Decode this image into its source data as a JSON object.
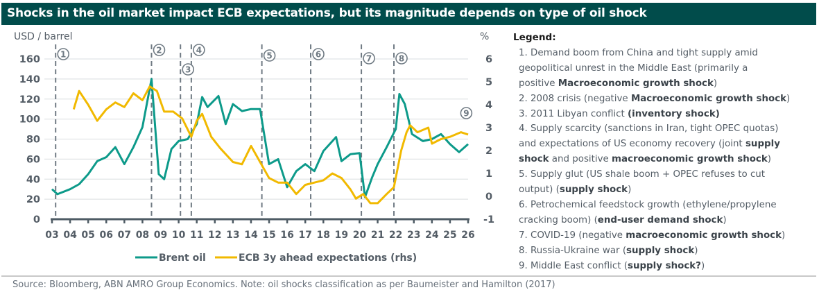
{
  "title": "Shocks in the oil market impact ECB expectations, but its magnitude depends on type of oil shock",
  "colors": {
    "title_bg": "#014c4b",
    "brent": "#0d9a8a",
    "ecb": "#f1b900",
    "marker": "#6f7a83",
    "axis": "#545d66",
    "grid": "#e1e4e6"
  },
  "legend_panel": {
    "heading": "Legend:",
    "items": [
      {
        "parts": [
          [
            "1. Demand boom from China and tight supply amid",
            false
          ]
        ]
      },
      {
        "parts": [
          [
            "geopolitical unrest in the Middle East (primarily a",
            false
          ]
        ]
      },
      {
        "parts": [
          [
            "positive ",
            false
          ],
          [
            "Macroeconomic growth shock",
            true
          ],
          [
            ")",
            false
          ]
        ]
      },
      {
        "parts": [
          [
            "2. 2008 crisis (negative ",
            false
          ],
          [
            "Macroeconomic growth shock",
            true
          ],
          [
            ")",
            false
          ]
        ]
      },
      {
        "parts": [
          [
            "3. 2011 Libyan conflict ",
            false
          ],
          [
            "(inventory shock)",
            true
          ]
        ]
      },
      {
        "parts": [
          [
            "4. Supply scarcity (sanctions in Iran, tight OPEC quotas)",
            false
          ]
        ]
      },
      {
        "parts": [
          [
            "and expectations of US economy recovery (joint ",
            false
          ],
          [
            "supply",
            true
          ]
        ]
      },
      {
        "parts": [
          [
            "shock",
            true
          ],
          [
            " and positive ",
            false
          ],
          [
            "macroeconomic growth shock",
            true
          ],
          [
            ")",
            false
          ]
        ]
      },
      {
        "parts": [
          [
            "5. Supply glut (US shale boom + OPEC refuses to cut",
            false
          ]
        ]
      },
      {
        "parts": [
          [
            "output) (",
            false
          ],
          [
            "supply shock",
            true
          ],
          [
            ")",
            false
          ]
        ]
      },
      {
        "parts": [
          [
            "6. Petrochemical feedstock growth (ethylene/propylene",
            false
          ]
        ]
      },
      {
        "parts": [
          [
            "cracking boom) (",
            false
          ],
          [
            "end-user demand shock",
            true
          ],
          [
            ")",
            false
          ]
        ]
      },
      {
        "parts": [
          [
            "7. COVID-19 (negative ",
            false
          ],
          [
            "macroeconomic growth shock",
            true
          ],
          [
            ")",
            false
          ]
        ]
      },
      {
        "parts": [
          [
            "8. Russia-Ukraine war (",
            false
          ],
          [
            "supply shock",
            true
          ],
          [
            ")",
            false
          ]
        ]
      },
      {
        "parts": [
          [
            "9. Middle East conflict (",
            false
          ],
          [
            "supply shock?",
            true
          ],
          [
            ")",
            false
          ]
        ]
      }
    ]
  },
  "source": "Source: Bloomberg, ABN AMRO Group Economics. Note: oil shocks classification as per Baumeister and Hamilton (2017)",
  "chart_data": {
    "type": "line",
    "title": "Shocks in the oil market impact ECB expectations, but its magnitude depends on type of oil shock",
    "ylabel": "USD / barrel",
    "y2label": "%",
    "xlabel": "",
    "xlim": [
      2003,
      2026
    ],
    "ylim": [
      0,
      160
    ],
    "y2lim": [
      -1,
      6
    ],
    "yticks": [
      0,
      20,
      40,
      60,
      80,
      100,
      120,
      140,
      160
    ],
    "y2ticks": [
      -1,
      0,
      1,
      2,
      3,
      4,
      5,
      6
    ],
    "xtick_labels": [
      "03",
      "04",
      "05",
      "06",
      "07",
      "08",
      "09",
      "10",
      "11",
      "12",
      "13",
      "14",
      "15",
      "16",
      "17",
      "18",
      "19",
      "20",
      "21",
      "22",
      "23",
      "24",
      "25",
      "26"
    ],
    "grid": true,
    "legend_position": "bottom",
    "series": [
      {
        "name": "Brent oil",
        "axis": "left",
        "x": [
          2003.0,
          2003.3,
          2004.0,
          2004.5,
          2005.0,
          2005.5,
          2006.0,
          2006.5,
          2007.0,
          2007.5,
          2008.0,
          2008.5,
          2008.9,
          2009.2,
          2009.6,
          2010.0,
          2010.5,
          2011.0,
          2011.3,
          2011.6,
          2012.2,
          2012.6,
          2013.0,
          2013.5,
          2014.0,
          2014.5,
          2015.0,
          2015.5,
          2016.0,
          2016.5,
          2017.0,
          2017.5,
          2018.0,
          2018.7,
          2019.0,
          2019.5,
          2020.0,
          2020.3,
          2020.7,
          2021.0,
          2021.5,
          2022.0,
          2022.2,
          2022.5,
          2022.9,
          2023.5,
          2024.0,
          2024.5,
          2025.0,
          2025.5,
          2026.0
        ],
        "values": [
          30,
          25,
          30,
          35,
          45,
          58,
          62,
          72,
          55,
          72,
          92,
          140,
          45,
          40,
          70,
          78,
          80,
          95,
          122,
          112,
          123,
          95,
          115,
          108,
          110,
          110,
          55,
          60,
          32,
          48,
          55,
          48,
          68,
          82,
          58,
          65,
          66,
          22,
          42,
          55,
          72,
          90,
          125,
          115,
          85,
          78,
          80,
          85,
          75,
          67,
          75
        ]
      },
      {
        "name": "ECB 3y ahead expectations (rhs)",
        "axis": "right",
        "x": [
          2004.2,
          2004.5,
          2005.0,
          2005.5,
          2006.0,
          2006.5,
          2007.0,
          2007.5,
          2008.0,
          2008.4,
          2008.8,
          2009.2,
          2009.7,
          2010.2,
          2010.7,
          2011.0,
          2011.3,
          2011.8,
          2012.3,
          2013.0,
          2013.5,
          2014.0,
          2014.5,
          2015.0,
          2015.5,
          2016.0,
          2016.5,
          2017.0,
          2017.5,
          2018.0,
          2018.5,
          2019.0,
          2019.5,
          2019.8,
          2020.2,
          2020.6,
          2021.0,
          2021.5,
          2021.9,
          2022.3,
          2022.6,
          2022.8,
          2023.2,
          2023.8,
          2024.0,
          2024.5,
          2025.0,
          2025.6,
          2026.0
        ],
        "values": [
          3.8,
          4.6,
          4.0,
          3.3,
          3.8,
          4.1,
          3.9,
          4.5,
          4.2,
          4.8,
          4.6,
          3.7,
          3.7,
          3.4,
          2.6,
          3.3,
          3.6,
          2.6,
          2.1,
          1.5,
          1.4,
          2.2,
          1.5,
          0.8,
          0.6,
          0.6,
          0.1,
          0.5,
          0.6,
          0.7,
          1.0,
          0.8,
          0.3,
          -0.1,
          0.1,
          -0.3,
          -0.3,
          0.1,
          0.4,
          2.0,
          2.8,
          3.1,
          2.8,
          3.0,
          2.3,
          2.5,
          2.6,
          2.8,
          2.7
        ]
      }
    ],
    "annotations": [
      {
        "label": "1",
        "x": 2003.2,
        "line": true
      },
      {
        "label": "2",
        "x": 2008.5,
        "line": true
      },
      {
        "label": "3",
        "x": 2010.1,
        "line": true
      },
      {
        "label": "4",
        "x": 2010.7,
        "line": true
      },
      {
        "label": "5",
        "x": 2014.6,
        "line": true
      },
      {
        "label": "6",
        "x": 2017.3,
        "line": true
      },
      {
        "label": "7",
        "x": 2020.1,
        "line": true
      },
      {
        "label": "8",
        "x": 2021.9,
        "line": true
      },
      {
        "label": "9",
        "x": 2025.9,
        "line": false
      }
    ]
  }
}
